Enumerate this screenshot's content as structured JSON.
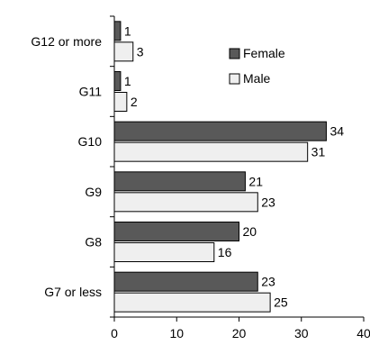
{
  "chart_data": {
    "type": "bar",
    "orientation": "horizontal",
    "categories": [
      "G12 or more",
      "G11",
      "G10",
      "G9",
      "G8",
      "G7 or less"
    ],
    "series": [
      {
        "name": "Female",
        "values": [
          1,
          1,
          34,
          21,
          20,
          23
        ],
        "color": "#595959"
      },
      {
        "name": "Male",
        "values": [
          3,
          2,
          31,
          23,
          16,
          25
        ],
        "color": "#efefef"
      }
    ],
    "xlim": [
      0,
      40
    ],
    "xticks": [
      0,
      10,
      20,
      30,
      40
    ],
    "grid": false,
    "legend_position": "top-right"
  }
}
